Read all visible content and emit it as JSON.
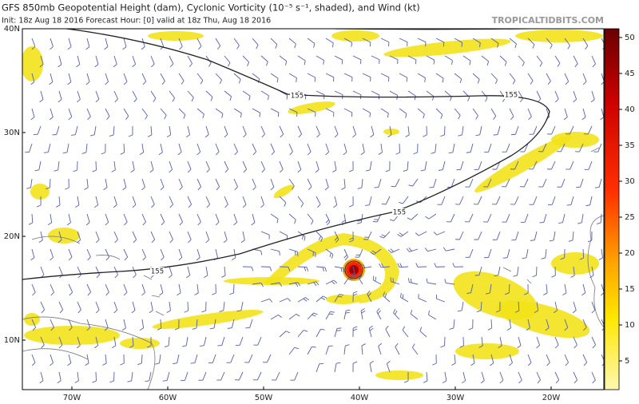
{
  "header": {
    "title": "GFS 850mb Geopotential Height (dam), Cyclonic Vorticity (10⁻⁵ s⁻¹, shaded), and Wind (kt)",
    "subtitle": "Init: 18z Aug 18 2016   Forecast Hour: [0]   valid at 18z Thu, Aug 18 2016",
    "site": "TROPICALTIDBITS.COM"
  },
  "map": {
    "lat_ticks": [
      {
        "value": 40,
        "label": "40N"
      },
      {
        "value": 30,
        "label": "30N"
      },
      {
        "value": 20,
        "label": "20N"
      },
      {
        "value": 10,
        "label": "10N"
      }
    ],
    "lon_ticks": [
      {
        "value": -70,
        "label": "70W"
      },
      {
        "value": -60,
        "label": "60W"
      },
      {
        "value": -50,
        "label": "50W"
      },
      {
        "value": -40,
        "label": "40W"
      },
      {
        "value": -30,
        "label": "30W"
      },
      {
        "value": -20,
        "label": "20W"
      }
    ],
    "contour_labels": [
      "155",
      "155",
      "155",
      "155"
    ]
  },
  "colorbar": {
    "ticks": [
      5,
      10,
      15,
      20,
      25,
      30,
      35,
      40,
      45,
      50
    ]
  }
}
